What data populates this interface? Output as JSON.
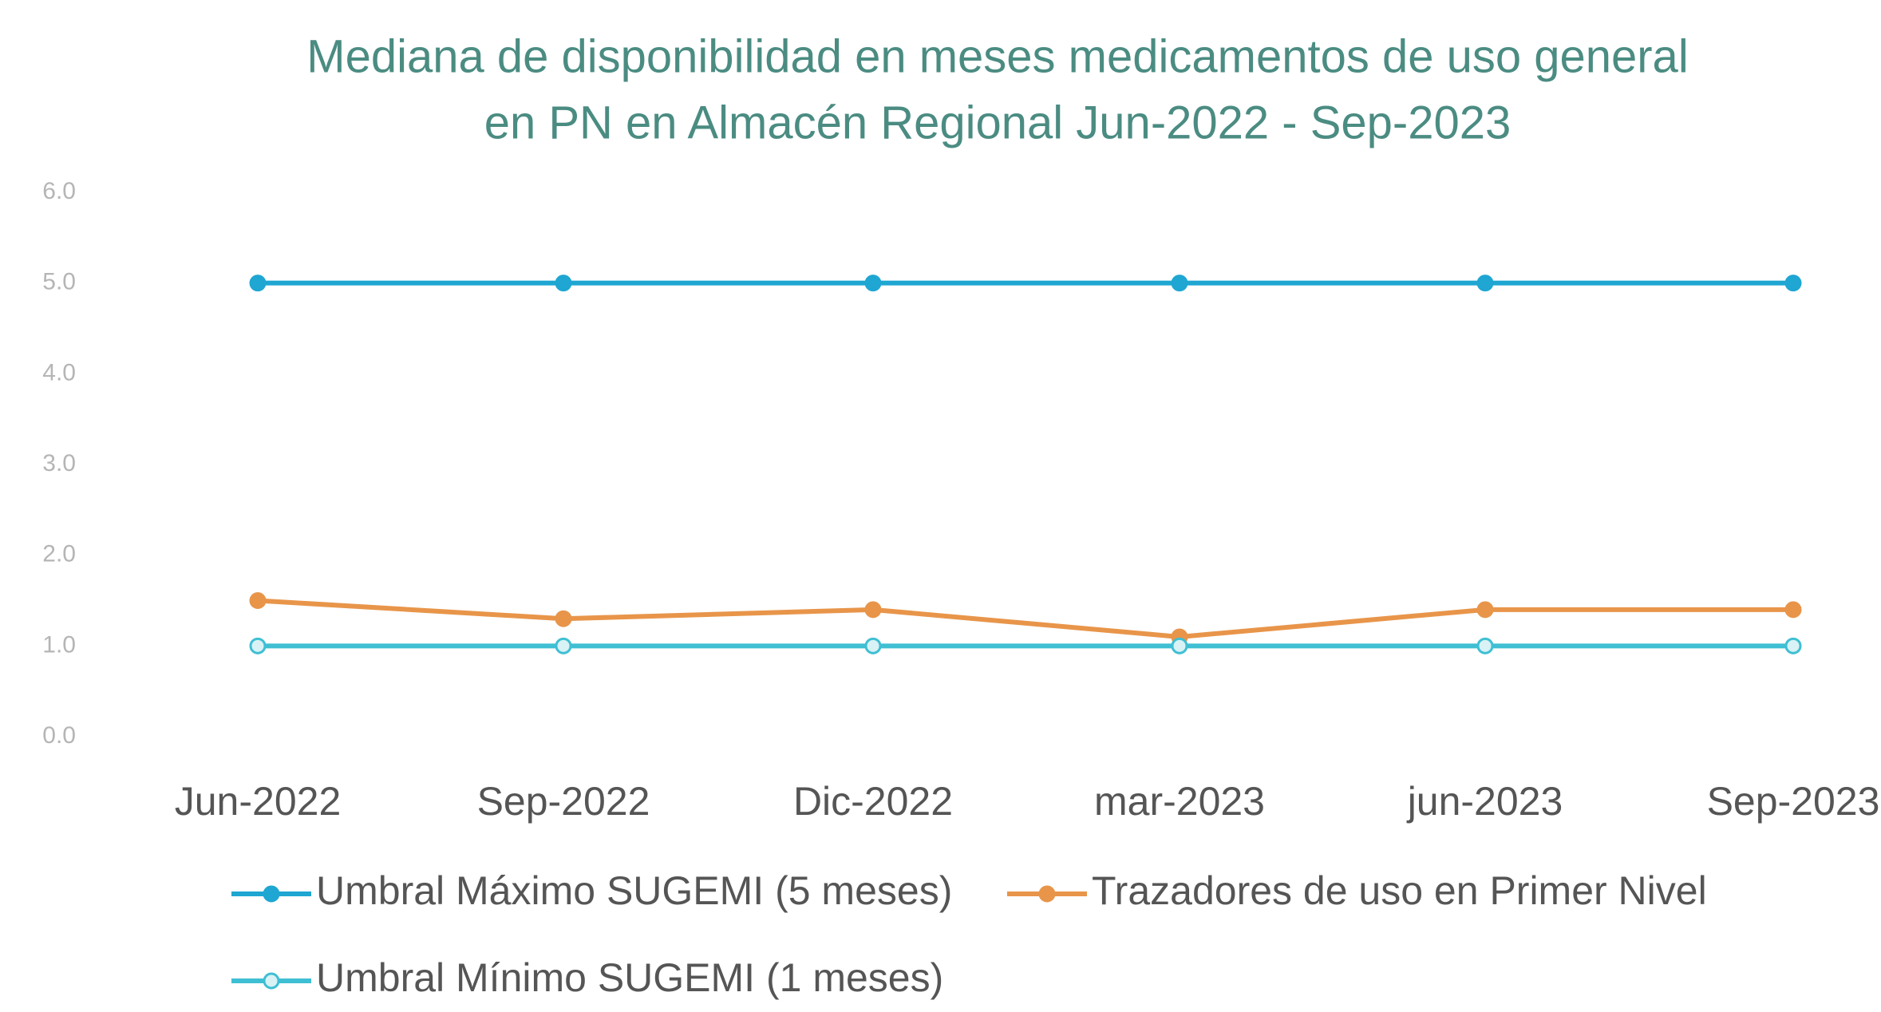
{
  "chart_data": {
    "type": "line",
    "title": [
      "Mediana de disponibilidad en meses medicamentos de uso general",
      "en PN en Almacén Regional  Jun-2022 - Sep-2023"
    ],
    "categories": [
      "Jun-2022",
      "Sep-2022",
      "Dic-2022",
      "mar-2023",
      "jun-2023",
      "Sep-2023"
    ],
    "series": [
      {
        "name": "Umbral Máximo SUGEMI (5 meses)",
        "color": "#1fa6d2",
        "values": [
          5.0,
          5.0,
          5.0,
          5.0,
          5.0,
          5.0
        ]
      },
      {
        "name": "Trazadores de uso en Primer Nivel",
        "color": "#e8954a",
        "values": [
          1.5,
          1.3,
          1.4,
          1.1,
          1.4,
          1.4
        ]
      },
      {
        "name": "Umbral Mínimo SUGEMI (1 meses)",
        "color": "#3fbfd3",
        "values": [
          1.0,
          1.0,
          1.0,
          1.0,
          1.0,
          1.0
        ]
      }
    ],
    "ylim": [
      0,
      6
    ],
    "yticks": [
      {
        "value": 0,
        "label": "0.0"
      },
      {
        "value": 1,
        "label": "1.0"
      },
      {
        "value": 2,
        "label": "2.0"
      },
      {
        "value": 3,
        "label": "3.0"
      },
      {
        "value": 4,
        "label": "4.0"
      },
      {
        "value": 5,
        "label": "5.0"
      },
      {
        "value": 6,
        "label": "6.0"
      }
    ],
    "grid": false
  }
}
